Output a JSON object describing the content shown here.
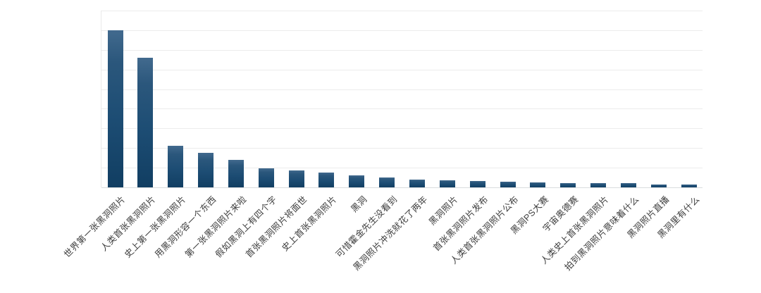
{
  "chart_data": {
    "type": "bar",
    "title": "",
    "xlabel": "",
    "ylabel": "",
    "categories": [
      "世界第一张黑洞照片",
      "人类首张黑洞照片",
      "史上第一张黑洞照片",
      "用黑洞形容一个东西",
      "第一张黑洞照片来啦",
      "假如黑洞上有四个字",
      "首张黑洞照片将面世",
      "史上首张黑洞照片",
      "黑洞",
      "可惜霍金先生没看到",
      "黑洞照片冲洗就花了两年",
      "黑洞照片",
      "首张黑洞照片发布",
      "人类首张黑洞照片公布",
      "黑洞PS大赛",
      "宇宙奥德赛",
      "人类史上首张黑洞照片",
      "拍到黑洞照片意味着什么",
      "黑洞照片直播",
      "黑洞里有什么"
    ],
    "values": [
      8.0,
      6.6,
      2.1,
      1.75,
      1.4,
      0.96,
      0.85,
      0.74,
      0.61,
      0.5,
      0.41,
      0.36,
      0.31,
      0.27,
      0.25,
      0.23,
      0.22,
      0.2,
      0.16,
      0.13
    ],
    "ylim": [
      0,
      9
    ],
    "gridline_count": 10,
    "grid": "horizontal",
    "legend": "none",
    "y_tick_labels_visible": false,
    "colors": {
      "bar_top": "#426a8e",
      "bar_bottom": "#113e62",
      "gridline": "#ececec",
      "axis_line": "#d9dcde",
      "label_text": "#3e3e3e",
      "background": "#ffffff"
    }
  }
}
